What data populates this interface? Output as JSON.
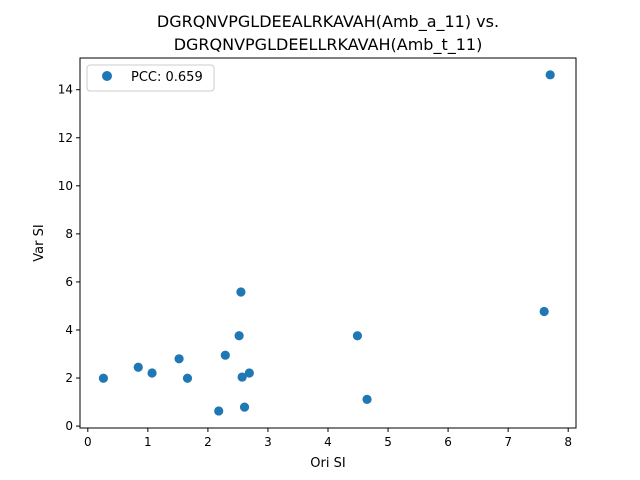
{
  "chart_data": {
    "type": "scatter",
    "title": [
      "DGRQNVPGLDEEALRKAVAH(Amb_a_11) vs.",
      "DGRQNVPGLDEELLRKAVAH(Amb_t_11)"
    ],
    "xlabel": "Ori SI",
    "ylabel": "Var SI",
    "xlim": [
      -0.13,
      8.13
    ],
    "ylim": [
      -0.08,
      15.32
    ],
    "xticks": [
      0,
      1,
      2,
      3,
      4,
      5,
      6,
      7,
      8
    ],
    "yticks": [
      0,
      2,
      4,
      6,
      8,
      10,
      12,
      14
    ],
    "legend": {
      "label": "PCC: 0.659",
      "location": "top-left"
    },
    "grid": false,
    "marker_color": "#1f77b4",
    "series": [
      {
        "name": "PCC: 0.659",
        "points": [
          [
            0.26,
            1.99
          ],
          [
            0.84,
            2.45
          ],
          [
            1.07,
            2.21
          ],
          [
            1.52,
            2.8
          ],
          [
            1.66,
            1.99
          ],
          [
            2.18,
            0.63
          ],
          [
            2.29,
            2.95
          ],
          [
            2.52,
            3.76
          ],
          [
            2.55,
            5.58
          ],
          [
            2.57,
            2.04
          ],
          [
            2.61,
            0.79
          ],
          [
            2.69,
            2.21
          ],
          [
            4.49,
            3.76
          ],
          [
            4.65,
            1.11
          ],
          [
            7.6,
            4.77
          ],
          [
            7.7,
            14.62
          ]
        ]
      }
    ]
  }
}
